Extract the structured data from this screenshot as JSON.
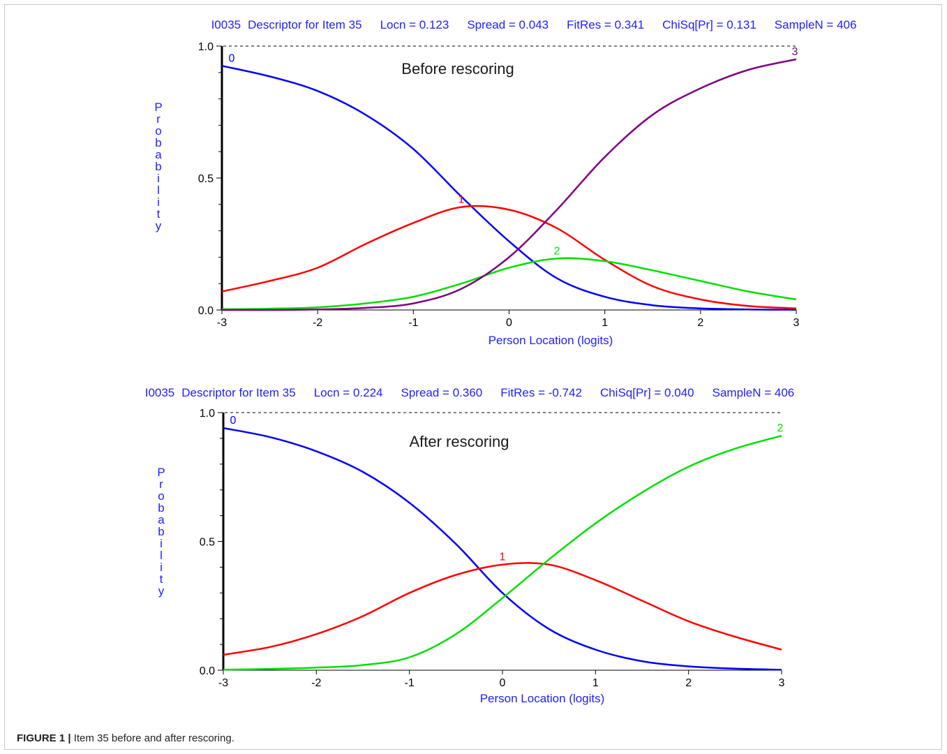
{
  "caption": {
    "label": "FIGURE 1 |",
    "text": "Item 35 before and after rescoring."
  },
  "colors": {
    "stats": "#2020ff",
    "axis_label": "#2020ff",
    "category_0": "#0000ff",
    "category_1": "#ff0000",
    "category_2": "#00e000",
    "category_3": "#800080",
    "axis": "#000000"
  },
  "chart_data": [
    {
      "type": "line",
      "stats": {
        "item": "I0035",
        "descriptor": "Descriptor for Item 35",
        "locn": "Locn = 0.123",
        "spread": "Spread = 0.043",
        "fitres": "FitRes = 0.341",
        "chisq": "ChiSq[Pr] = 0.131",
        "samplen": "SampleN = 406"
      },
      "annotation": "Before rescoring",
      "xlabel": "Person Location (logits)",
      "ylabel": "Probability",
      "xlim": [
        -3,
        3
      ],
      "ylim": [
        0,
        1
      ],
      "xticks": [
        "-3",
        "-2",
        "-1",
        "0",
        "1",
        "2",
        "3"
      ],
      "yticks": [
        "0.0",
        "0.5",
        "1.0"
      ],
      "reference_line": 1.0,
      "x": [
        -3,
        -2.5,
        -2,
        -1.5,
        -1,
        -0.5,
        0,
        0.5,
        1,
        1.5,
        2,
        2.5,
        3
      ],
      "series": [
        {
          "name": "0",
          "color": "#0000ff",
          "values": [
            0.925,
            0.885,
            0.83,
            0.74,
            0.61,
            0.43,
            0.26,
            0.12,
            0.05,
            0.018,
            0.006,
            0.002,
            0.001
          ]
        },
        {
          "name": "1",
          "color": "#ff0000",
          "values": [
            0.07,
            0.11,
            0.16,
            0.25,
            0.33,
            0.39,
            0.38,
            0.31,
            0.19,
            0.09,
            0.04,
            0.015,
            0.006
          ]
        },
        {
          "name": "2",
          "color": "#00e000",
          "values": [
            0.003,
            0.005,
            0.01,
            0.025,
            0.05,
            0.1,
            0.16,
            0.195,
            0.185,
            0.15,
            0.11,
            0.07,
            0.04
          ]
        },
        {
          "name": "3",
          "color": "#800080",
          "values": [
            0.0,
            0.0,
            0.002,
            0.008,
            0.025,
            0.08,
            0.2,
            0.38,
            0.58,
            0.74,
            0.84,
            0.91,
            0.95
          ]
        }
      ]
    },
    {
      "type": "line",
      "stats": {
        "item": "I0035",
        "descriptor": "Descriptor for Item 35",
        "locn": "Locn = 0.224",
        "spread": "Spread = 0.360",
        "fitres": "FitRes = -0.742",
        "chisq": "ChiSq[Pr] = 0.040",
        "samplen": "SampleN = 406"
      },
      "annotation": "After rescoring",
      "xlabel": "Person Location (logits)",
      "ylabel": "Probability",
      "xlim": [
        -3,
        3
      ],
      "ylim": [
        0,
        1
      ],
      "xticks": [
        "-3",
        "-2",
        "-1",
        "0",
        "1",
        "2",
        "3"
      ],
      "yticks": [
        "0.0",
        "0.5",
        "1.0"
      ],
      "reference_line": 1.0,
      "x": [
        -3,
        -2.5,
        -2,
        -1.5,
        -1,
        -0.5,
        0,
        0.5,
        1,
        1.5,
        2,
        2.5,
        3
      ],
      "series": [
        {
          "name": "0",
          "color": "#0000ff",
          "values": [
            0.94,
            0.905,
            0.85,
            0.77,
            0.65,
            0.49,
            0.3,
            0.16,
            0.08,
            0.035,
            0.015,
            0.006,
            0.002
          ]
        },
        {
          "name": "1",
          "color": "#ff0000",
          "values": [
            0.06,
            0.09,
            0.14,
            0.21,
            0.3,
            0.37,
            0.41,
            0.41,
            0.35,
            0.27,
            0.19,
            0.13,
            0.08
          ]
        },
        {
          "name": "2",
          "color": "#00e000",
          "values": [
            0.002,
            0.005,
            0.01,
            0.02,
            0.05,
            0.14,
            0.28,
            0.43,
            0.57,
            0.69,
            0.79,
            0.86,
            0.91
          ]
        }
      ]
    }
  ]
}
